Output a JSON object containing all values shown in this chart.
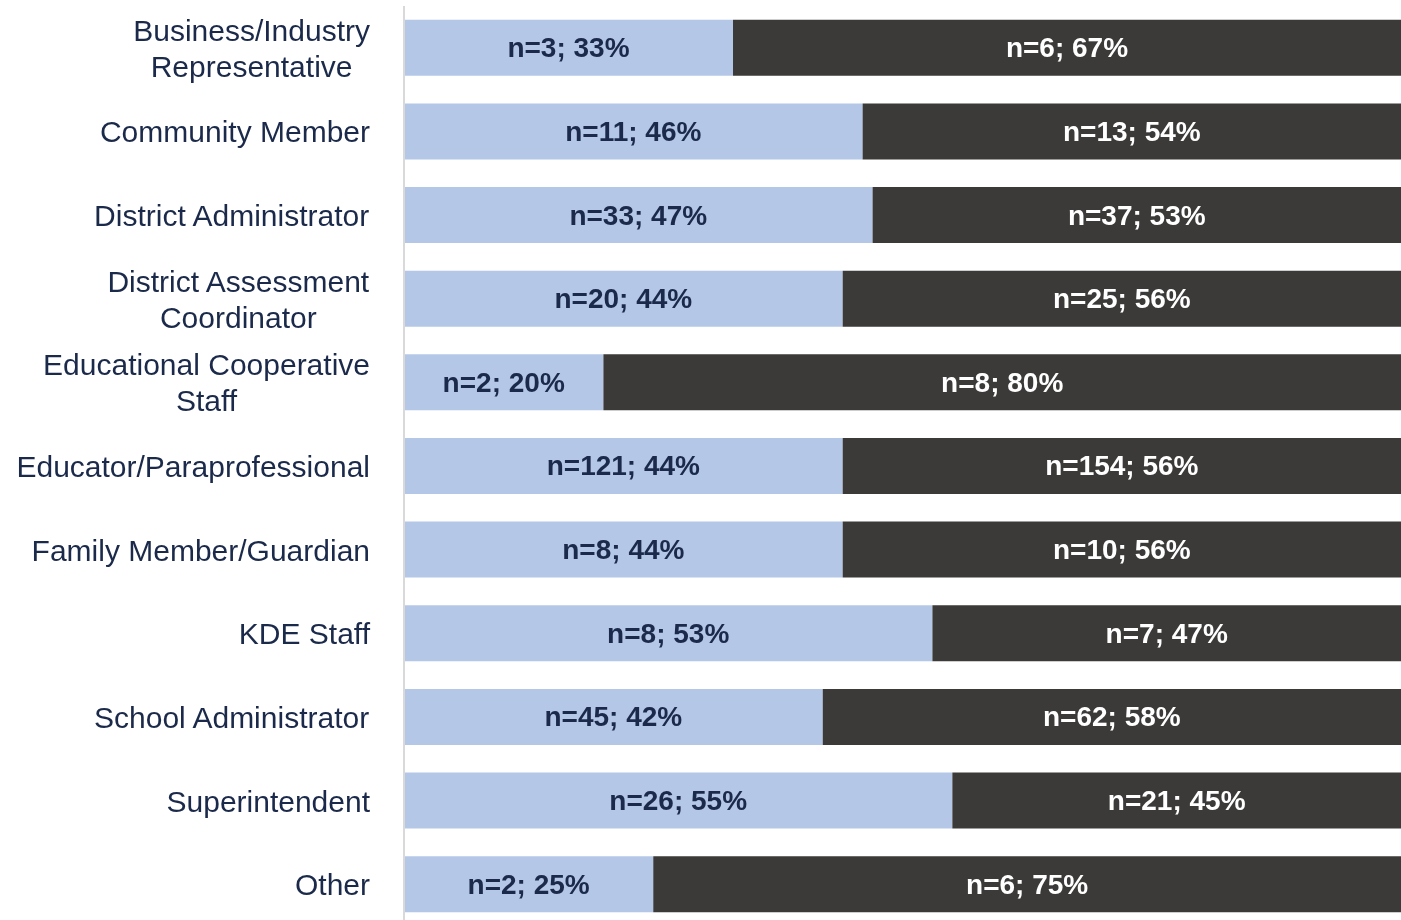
{
  "chart_data": {
    "type": "bar",
    "orientation": "horizontal",
    "stacked": true,
    "categories": [
      "Business/Industry Representative",
      "Community Member",
      "District Administrator",
      "District Assessment Coordinator",
      "Educational Cooperative Staff",
      "Educator/Paraprofessional",
      "Family Member/Guardian",
      "KDE Staff",
      "School Administrator",
      "Superintendent",
      "Other"
    ],
    "xlim": [
      0,
      100
    ],
    "series": [
      {
        "color": "#b4c7e7",
        "values": [
          33,
          46,
          47,
          44,
          20,
          44,
          44,
          53,
          42,
          55,
          25
        ],
        "value_labels": [
          "n=3; 33%",
          "n=11; 46%",
          "n=33; 47%",
          "n=20; 44%",
          "n=2; 20%",
          "n=121; 44%",
          "n=8; 44%",
          "n=8; 53%",
          "n=45; 42%",
          "n=26; 55%",
          "n=2; 25%"
        ]
      },
      {
        "color": "#3b3a39",
        "values": [
          67,
          54,
          53,
          56,
          80,
          56,
          56,
          47,
          58,
          45,
          75
        ],
        "value_labels": [
          "n=6; 67%",
          "n=13; 54%",
          "n=37; 53%",
          "n=25; 56%",
          "n=8; 80%",
          "n=154; 56%",
          "n=10; 56%",
          "n=7; 47%",
          "n=62; 58%",
          "n=21; 45%",
          "n=6; 75%"
        ]
      }
    ]
  }
}
